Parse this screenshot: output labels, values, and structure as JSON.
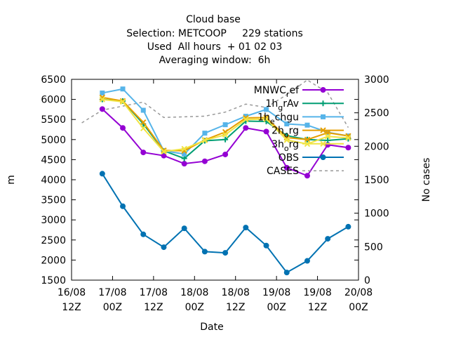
{
  "chart_data": {
    "type": "line",
    "title_lines": [
      "Cloud base",
      "Selection: METCOOP     229 stations",
      "Used  All hours  + 01 02 03",
      "Averaging window:  6h"
    ],
    "xlabel": "Date",
    "ylabel": "m",
    "y2label": "No cases",
    "xlim": [
      0,
      84
    ],
    "ylim": [
      1500,
      6500
    ],
    "y2lim": [
      0,
      3000
    ],
    "x_ticks": [
      {
        "x": 0,
        "line1": "16/08",
        "line2": "12Z"
      },
      {
        "x": 12,
        "line1": "17/08",
        "line2": "00Z"
      },
      {
        "x": 24,
        "line1": "17/08",
        "line2": "12Z"
      },
      {
        "x": 36,
        "line1": "18/08",
        "line2": "00Z"
      },
      {
        "x": 48,
        "line1": "18/08",
        "line2": "12Z"
      },
      {
        "x": 60,
        "line1": "19/08",
        "line2": "00Z"
      },
      {
        "x": 72,
        "line1": "19/08",
        "line2": "12Z"
      },
      {
        "x": 84,
        "line1": "20/08",
        "line2": "00Z"
      }
    ],
    "y_ticks": [
      "1500",
      "2000",
      "2500",
      "3000",
      "3500",
      "4000",
      "4500",
      "5000",
      "5500",
      "6000",
      "6500"
    ],
    "y2_ticks": [
      "0",
      "500",
      "1000",
      "1500",
      "2000",
      "2500",
      "3000"
    ],
    "x": [
      9,
      15,
      21,
      27,
      33,
      39,
      45,
      51,
      57,
      63,
      69,
      75,
      81
    ],
    "series": [
      {
        "name": "MNWC_ref",
        "label_main": "MNWC",
        "label_sub": "r",
        "label_rest": "ef",
        "color": "#9400d3",
        "marker": "circle",
        "values": [
          5760,
          5290,
          4680,
          4600,
          4400,
          4460,
          4630,
          5290,
          5200,
          4300,
          4100,
          4870,
          4800
        ]
      },
      {
        "name": "1h_grAv",
        "label_main": "1h",
        "label_sub": "g",
        "label_rest": "rAv",
        "color": "#009e73",
        "marker": "plus",
        "values": [
          6000,
          5960,
          5390,
          4720,
          4530,
          4970,
          5000,
          5460,
          5450,
          5100,
          5000,
          4980,
          5020
        ]
      },
      {
        "name": "1h_echgu",
        "label_main": "1h",
        "label_sub": "e",
        "label_rest": "chgu",
        "color": "#56b4e9",
        "marker": "square",
        "values": [
          6160,
          6260,
          5730,
          4720,
          4640,
          5160,
          5370,
          5580,
          5750,
          5390,
          5360,
          5180,
          5090
        ]
      },
      {
        "name": "2h_org",
        "label_main": "2h",
        "label_sub": "o",
        "label_rest": "rg",
        "color": "#e69f00",
        "marker": "x",
        "values": [
          6050,
          5960,
          5430,
          4730,
          4720,
          4990,
          5190,
          5540,
          5550,
          5050,
          5000,
          5170,
          5090
        ]
      },
      {
        "name": "3h_org",
        "label_main": "3h",
        "label_sub": "o",
        "label_rest": "rg",
        "color": "#f0e442",
        "marker": "x",
        "values": [
          6000,
          5940,
          5280,
          4700,
          4770,
          4980,
          5120,
          5500,
          5510,
          4990,
          4890,
          5080,
          5040
        ]
      },
      {
        "name": "OBS",
        "label_main": "OBS",
        "label_sub": "",
        "label_rest": "",
        "color": "#0072b2",
        "marker": "circle",
        "values": [
          4150,
          3340,
          2640,
          2320,
          2790,
          2210,
          2180,
          2810,
          2360,
          1690,
          1980,
          2530,
          2830
        ]
      },
      {
        "name": "CASES",
        "label_main": "CASES",
        "label_sub": "",
        "label_rest": "",
        "color": "#999999",
        "marker": "none",
        "axis": "y2",
        "dashed": true,
        "x": [
          3,
          9,
          15,
          21,
          27,
          33,
          39,
          45,
          51,
          57,
          63,
          69,
          75,
          81
        ],
        "values": [
          2350,
          2540,
          2600,
          2660,
          2430,
          2440,
          2450,
          2510,
          2630,
          2580,
          2770,
          2990,
          2800,
          2280
        ]
      }
    ],
    "legend_position": "top-right",
    "grid": false
  }
}
